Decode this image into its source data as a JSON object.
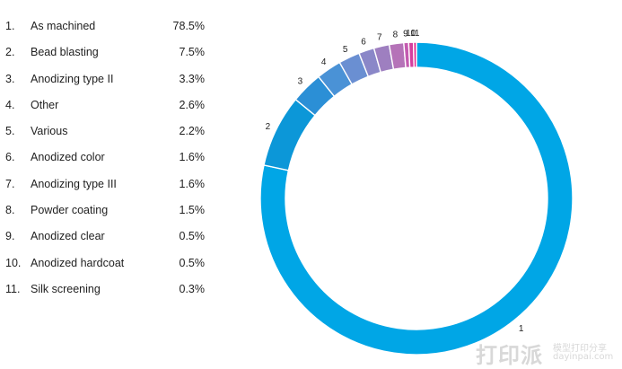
{
  "chart_data": {
    "type": "pie",
    "style": "donut",
    "categories": [
      "1.",
      "2.",
      "3.",
      "4.",
      "5.",
      "6.",
      "7.",
      "8.",
      "9.",
      "10.",
      "11."
    ],
    "labels": [
      "As machined",
      "Bead blasting",
      "Anodizing type II",
      "Other",
      "Various",
      "Anodized color",
      "Anodizing type III",
      "Powder coating",
      "Anodized clear",
      "Anodized hardcoat",
      "Silk screening"
    ],
    "values": [
      78.5,
      7.5,
      3.3,
      2.6,
      2.2,
      1.6,
      1.6,
      1.5,
      0.5,
      0.5,
      0.3
    ],
    "value_labels": [
      "78.5%",
      "7.5%",
      "3.3%",
      "2.6%",
      "2.2%",
      "1.6%",
      "1.6%",
      "1.5%",
      "0.5%",
      "0.5%",
      "0.3%"
    ],
    "slice_labels": [
      "1",
      "2",
      "3",
      "4",
      "5",
      "6",
      "7",
      "8",
      "9",
      "10",
      "11"
    ],
    "colors": [
      "#00a6e6",
      "#0c97d8",
      "#2b8fd6",
      "#4a92d6",
      "#6a8fd2",
      "#8a87c8",
      "#9e7fc0",
      "#b573b8",
      "#c45ab0",
      "#d43f9f",
      "#e0208e"
    ],
    "legend_position": "left"
  },
  "watermark": {
    "logo_text": "打印派",
    "subtitle": "模型打印分享",
    "url": "dayinpai.com"
  }
}
